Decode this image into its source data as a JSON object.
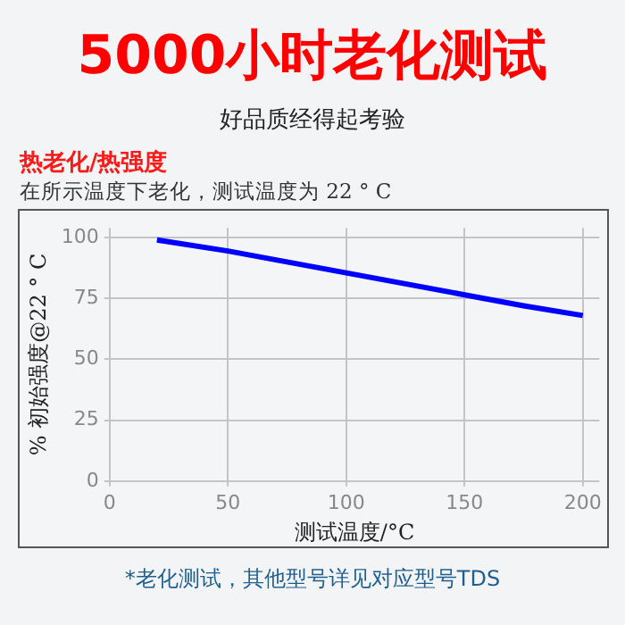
{
  "chart_data": {
    "type": "line",
    "title": "5000小时老化测试",
    "subtitle": "好品质经得起考验",
    "annotations": [
      "热老化/热强度",
      "在所示温度下老化，测试温度为 22 ° C",
      "*老化测试，其他型号详见对应型号TDS"
    ],
    "xlabel": "测试温度/°C",
    "ylabel": "% 初始强度@22 ° C",
    "series": [
      {
        "color": "#0000ff",
        "x": [
          20,
          50,
          75,
          100,
          125,
          150,
          175,
          200
        ],
        "values": [
          99,
          94.5,
          90,
          85.5,
          81,
          76.5,
          72,
          68
        ]
      }
    ],
    "xlim": [
      0,
      207
    ],
    "xticks": [
      0,
      50,
      100,
      150,
      200
    ],
    "ylim": [
      0,
      104
    ],
    "yticks": [
      0,
      25,
      50,
      75,
      100
    ],
    "grid": true,
    "legend": false,
    "marker": "none",
    "line_style": "solid"
  }
}
